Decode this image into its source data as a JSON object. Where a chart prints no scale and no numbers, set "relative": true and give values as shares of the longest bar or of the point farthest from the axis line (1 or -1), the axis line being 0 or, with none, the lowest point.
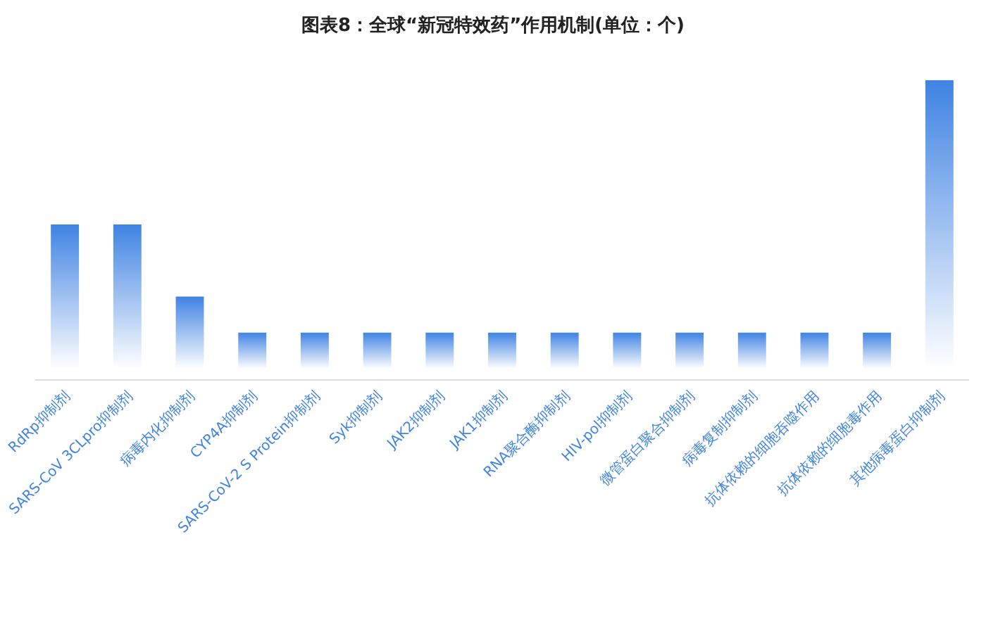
{
  "chart_data": {
    "type": "bar",
    "title": "图表8：全球“新冠特效药”作用机制(单位：个)",
    "relative": true,
    "categories": [
      "RdRp抑制剂",
      "SARS-CoV 3CLpro抑制剂",
      "病毒内化抑制剂",
      "CYP4A抑制剂",
      "SARS-CoV-2 S Protein抑制剂",
      "Syk抑制剂",
      "JAK2抑制剂",
      "JAK1抑制剂",
      "RNA聚合酶抑制剂",
      "HIV-pol抑制剂",
      "微管蛋白聚合抑制剂",
      "病毒复制抑制剂",
      "抗体依赖的细胞吞噬作用",
      "抗体依赖的细胞毒作用",
      "其他病毒蛋白抑制剂"
    ],
    "values": [
      0.5,
      0.5,
      0.25,
      0.125,
      0.125,
      0.125,
      0.125,
      0.125,
      0.125,
      0.125,
      0.125,
      0.125,
      0.125,
      0.125,
      1
    ],
    "color": "#3f83e3"
  }
}
